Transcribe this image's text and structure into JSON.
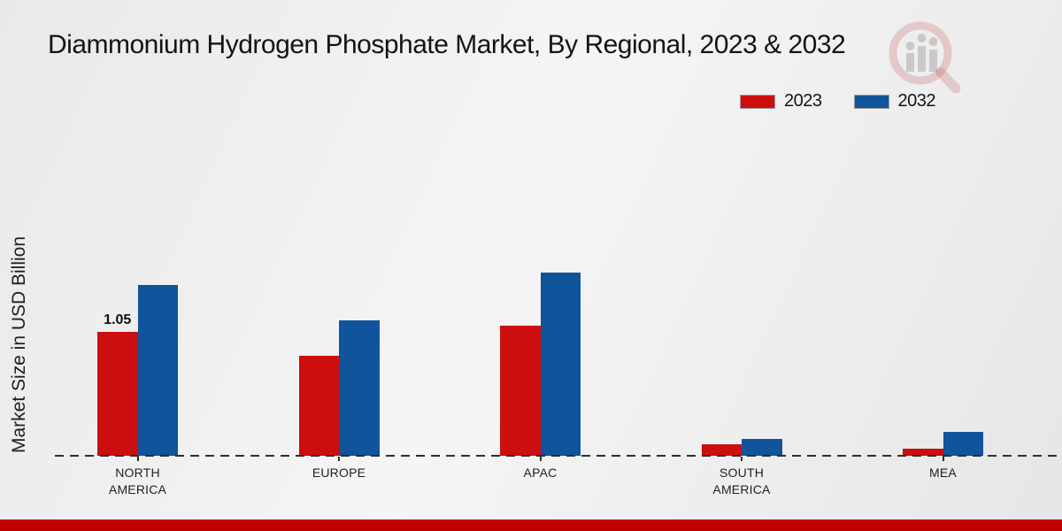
{
  "title": "Diammonium Hydrogen Phosphate Market, By Regional, 2023 & 2032",
  "y_axis_label": "Market Size in USD Billion",
  "legend": {
    "items": [
      {
        "label": "2023",
        "color": "#cc0e0e"
      },
      {
        "label": "2032",
        "color": "#10549b"
      }
    ]
  },
  "footer": {
    "accent_color": "#c00000"
  },
  "watermark": {
    "name": "market-research-magnifier-logo"
  },
  "chart_data": {
    "type": "bar",
    "title": "Diammonium Hydrogen Phosphate Market, By Regional, 2023 & 2032",
    "xlabel": "",
    "ylabel": "Market Size in USD Billion",
    "categories": [
      "NORTH AMERICA",
      "EUROPE",
      "APAC",
      "SOUTH AMERICA",
      "MEA"
    ],
    "category_lines": [
      [
        "NORTH",
        "AMERICA"
      ],
      [
        "EUROPE"
      ],
      [
        "APAC"
      ],
      [
        "SOUTH",
        "AMERICA"
      ],
      [
        "MEA"
      ]
    ],
    "series": [
      {
        "name": "2023",
        "color": "#cc0e0e",
        "values": [
          1.05,
          0.85,
          1.1,
          0.1,
          0.06
        ]
      },
      {
        "name": "2032",
        "color": "#10549b",
        "values": [
          1.45,
          1.15,
          1.55,
          0.14,
          0.2
        ]
      }
    ],
    "data_labels": [
      {
        "category_index": 0,
        "series_index": 0,
        "text": "1.05"
      }
    ],
    "ylim": [
      0,
      1.6
    ],
    "grid": false,
    "legend_position": "top-right",
    "baseline_style": "dashed"
  }
}
